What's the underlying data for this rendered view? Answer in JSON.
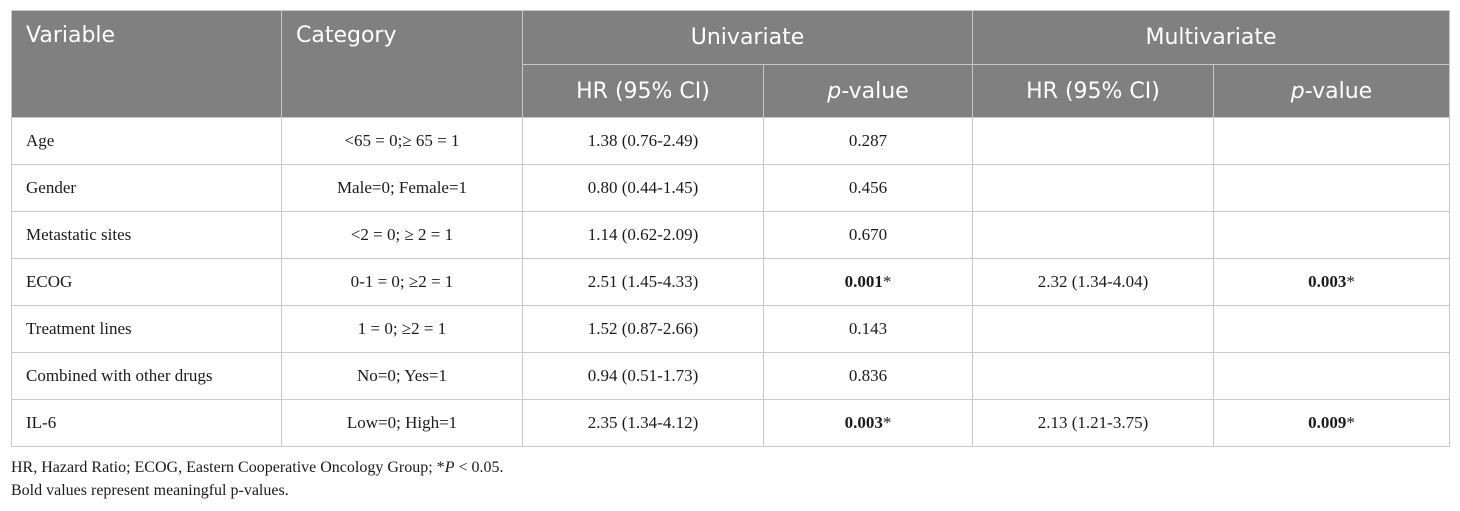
{
  "header": {
    "variable": "Variable",
    "category": "Category",
    "univariate": "Univariate",
    "multivariate": "Multivariate",
    "hr": "HR (95% CI)",
    "p_italic": "p",
    "p_rest": "-value"
  },
  "rows": [
    {
      "variable": "Age",
      "category": "<65 = 0;≥ 65 = 1",
      "uni_hr": "1.38 (0.76-2.49)",
      "uni_p": "0.287",
      "uni_p_mark": "",
      "multi_hr": "",
      "multi_p": "",
      "multi_p_mark": ""
    },
    {
      "variable": "Gender",
      "category": "Male=0; Female=1",
      "uni_hr": "0.80 (0.44-1.45)",
      "uni_p": "0.456",
      "uni_p_mark": "",
      "multi_hr": "",
      "multi_p": "",
      "multi_p_mark": ""
    },
    {
      "variable": "Metastatic sites",
      "category": "<2 = 0; ≥ 2 = 1",
      "uni_hr": "1.14 (0.62-2.09)",
      "uni_p": "0.670",
      "uni_p_mark": "",
      "multi_hr": "",
      "multi_p": "",
      "multi_p_mark": ""
    },
    {
      "variable": "ECOG",
      "category": "0-1 = 0; ≥2 = 1",
      "uni_hr": "2.51 (1.45-4.33)",
      "uni_p": "0.001",
      "uni_p_mark": "*",
      "multi_hr": "2.32 (1.34-4.04)",
      "multi_p": "0.003",
      "multi_p_mark": "*"
    },
    {
      "variable": "Treatment lines",
      "category": "1 = 0; ≥2 = 1",
      "uni_hr": "1.52 (0.87-2.66)",
      "uni_p": "0.143",
      "uni_p_mark": "",
      "multi_hr": "",
      "multi_p": "",
      "multi_p_mark": ""
    },
    {
      "variable": "Combined with other drugs",
      "category": "No=0; Yes=1",
      "uni_hr": "0.94 (0.51-1.73)",
      "uni_p": "0.836",
      "uni_p_mark": "",
      "multi_hr": "",
      "multi_p": "",
      "multi_p_mark": ""
    },
    {
      "variable": "IL-6",
      "category": "Low=0; High=1",
      "uni_hr": "2.35 (1.34-4.12)",
      "uni_p": "0.003",
      "uni_p_mark": "*",
      "multi_hr": "2.13 (1.21-3.75)",
      "multi_p": "0.009",
      "multi_p_mark": "*"
    }
  ],
  "notes": {
    "line1_pre": "HR, Hazard Ratio; ECOG, Eastern Cooperative Oncology Group; *",
    "line1_p": "P",
    "line1_post": " < 0.05.",
    "line2": "Bold values represent meaningful p-values."
  }
}
